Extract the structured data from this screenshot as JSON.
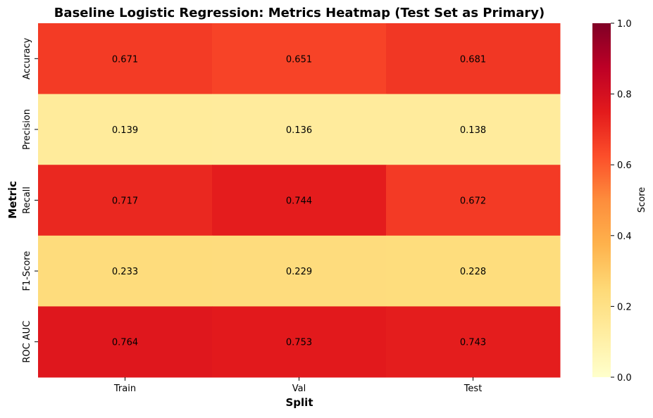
{
  "chart_data": {
    "type": "heatmap",
    "title": "Baseline Logistic Regression: Metrics Heatmap (Test Set as Primary)",
    "xlabel": "Split",
    "ylabel": "Metric",
    "x_categories": [
      "Train",
      "Val",
      "Test"
    ],
    "y_categories": [
      "Accuracy",
      "Precision",
      "Recall",
      "F1-Score",
      "ROC AUC"
    ],
    "values": [
      [
        0.671,
        0.651,
        0.681
      ],
      [
        0.139,
        0.136,
        0.138
      ],
      [
        0.717,
        0.744,
        0.672
      ],
      [
        0.233,
        0.229,
        0.228
      ],
      [
        0.764,
        0.753,
        0.743
      ]
    ],
    "value_labels": [
      [
        "0.671",
        "0.651",
        "0.681"
      ],
      [
        "0.139",
        "0.136",
        "0.138"
      ],
      [
        "0.717",
        "0.744",
        "0.672"
      ],
      [
        "0.233",
        "0.229",
        "0.228"
      ],
      [
        "0.764",
        "0.753",
        "0.743"
      ]
    ],
    "colorbar": {
      "label": "Score",
      "range": [
        0,
        1
      ],
      "ticks": [
        "0.0",
        "0.2",
        "0.4",
        "0.6",
        "0.8",
        "1.0"
      ],
      "colormap": "YlOrRd"
    },
    "colormap_stops": [
      "#ffffcc",
      "#ffeda0",
      "#fed976",
      "#feb24c",
      "#fd8d3c",
      "#fc4e2a",
      "#e31a1c",
      "#bd0026",
      "#800026"
    ]
  }
}
